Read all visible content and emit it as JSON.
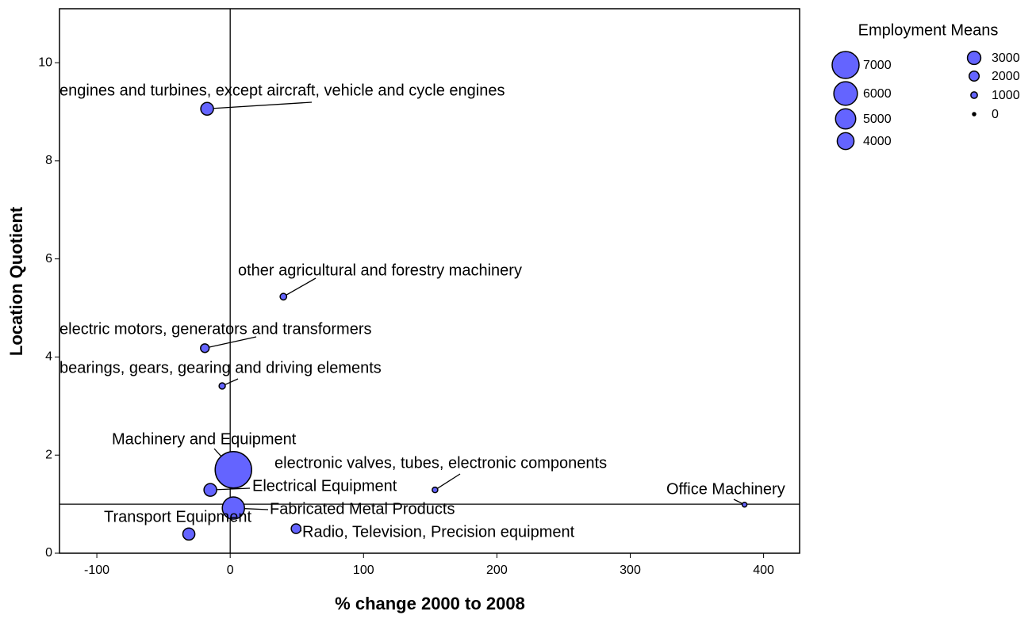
{
  "chart_data": {
    "type": "bubble",
    "x_label": "% change 2000 to 2008",
    "y_label": "Location Quotient",
    "size_label": "Employment Means",
    "labels": [
      "engines and turbines, except aircraft, vehicle and cycle engines",
      "other agricultural and forestry machinery",
      "electric motors, generators and transformers",
      "bearings, gears, gearing and driving elements",
      "Machinery and Equipment",
      "electronic valves, tubes, electronic components",
      "Electrical Equipment",
      "Fabricated Metal Products",
      "Office Machinery",
      "Radio, Television, Precision equipment",
      "Transport Equipment"
    ],
    "x": [
      -17.3,
      39.9,
      -19,
      -6,
      2.4,
      153.6,
      -14.9,
      2.4,
      385.7,
      49.4,
      -31
    ],
    "values": [
      9.06,
      5.23,
      4.18,
      3.41,
      1.7,
      1.29,
      1.29,
      0.92,
      0.99,
      0.5,
      0.39
    ],
    "sizes": [
      2800,
      1000,
      1600,
      900,
      9800,
      700,
      2800,
      5600,
      470,
      1900,
      2600
    ],
    "legend_sizes": [
      7000,
      6000,
      5000,
      4000,
      3000,
      2000,
      1000,
      0
    ],
    "color": "#6464ff",
    "xlim": [
      -128,
      427
    ],
    "ylim": [
      0,
      11.1
    ],
    "xticks": [
      -100,
      0,
      100,
      200,
      300,
      400
    ],
    "yticks": [
      0,
      2,
      4,
      6,
      8,
      10
    ],
    "reference_lines": {
      "x": 0,
      "y": 1
    }
  }
}
